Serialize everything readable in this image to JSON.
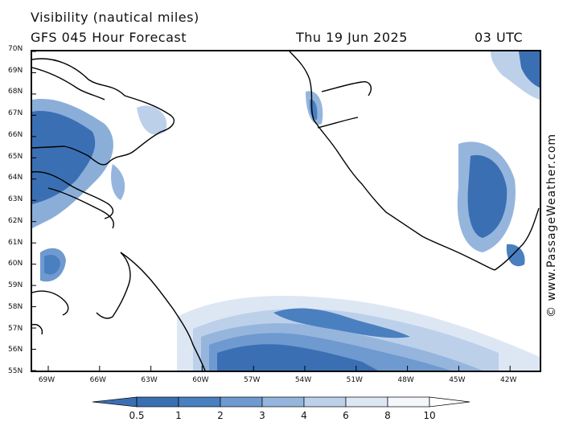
{
  "header": {
    "title": "Visibility (nautical miles)",
    "model": "GFS 045 Hour Forecast",
    "date": "Thu 19 Jun 2025",
    "time": "03 UTC"
  },
  "credit": "© www.PassageWeather.com",
  "lat_labels": [
    "70N",
    "69N",
    "68N",
    "67N",
    "66N",
    "65N",
    "64N",
    "63N",
    "62N",
    "61N",
    "60N",
    "59N",
    "58N",
    "57N",
    "56N",
    "55N"
  ],
  "lon_labels": [
    "69W",
    "66W",
    "63W",
    "60W",
    "57W",
    "54W",
    "51W",
    "48W",
    "45W",
    "42W"
  ],
  "legend": {
    "values": [
      "0.5",
      "1",
      "2",
      "3",
      "4",
      "6",
      "8",
      "10"
    ],
    "colors": [
      "#3b6fb3",
      "#4a7fc0",
      "#6e9ad0",
      "#95b5dd",
      "#bdd0ea",
      "#dde7f4",
      "#f3f6fb"
    ]
  },
  "map_regions": [
    "baffin-island",
    "greenland",
    "labrador",
    "north-atlantic",
    "labrador-sea",
    "davis-strait"
  ]
}
